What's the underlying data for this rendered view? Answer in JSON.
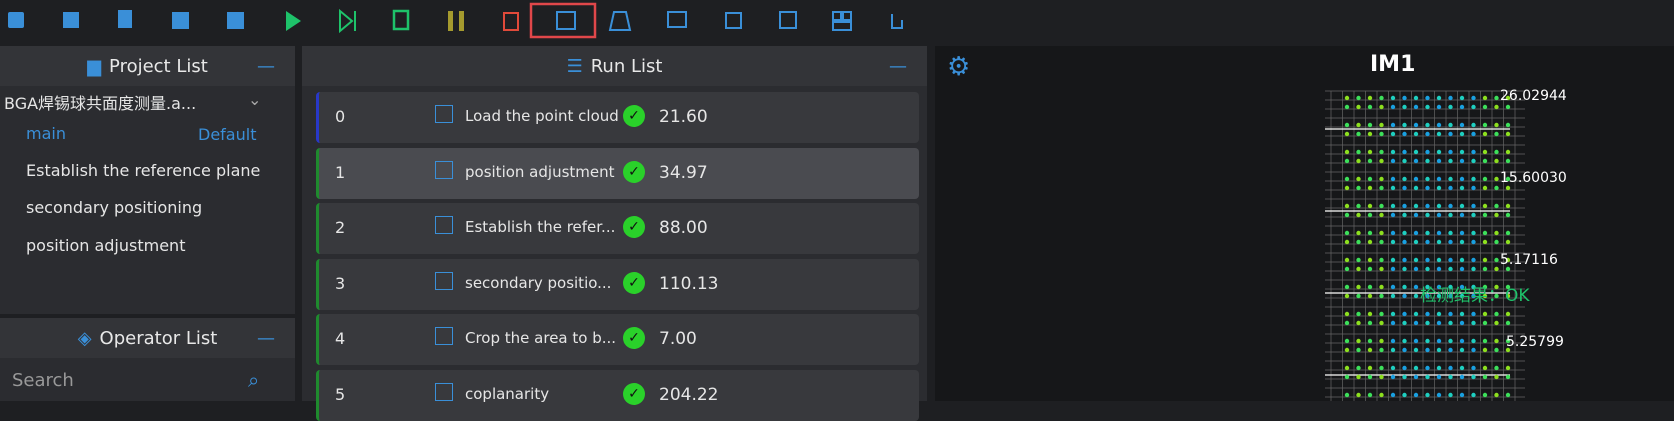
{
  "project_list": {
    "title": "Project List",
    "project": "BGA焊锡球共面度测量.a...",
    "flow": "main",
    "flow_tag": "Default",
    "items": [
      "Establish the reference plane",
      "secondary positioning",
      "position adjustment"
    ]
  },
  "operator_list": {
    "title": "Operator List",
    "search_placeholder": "Search"
  },
  "run_list": {
    "title": "Run List",
    "rows": [
      [
        "0",
        "Load the point cloud",
        "21.60"
      ],
      [
        "1",
        "position adjustment",
        "34.97"
      ],
      [
        "2",
        "Establish the refer...",
        "88.00"
      ],
      [
        "3",
        "secondary positio...",
        "110.13"
      ],
      [
        "4",
        "Crop the area to b...",
        "7.00"
      ],
      [
        "5",
        "coplanarity",
        "204.22"
      ]
    ]
  },
  "viewer": {
    "title": "IM1",
    "axis_labels": [
      "26.02944",
      "15.60030",
      "5.17116",
      "5.25799"
    ],
    "annotation": "检测结果：OK"
  }
}
